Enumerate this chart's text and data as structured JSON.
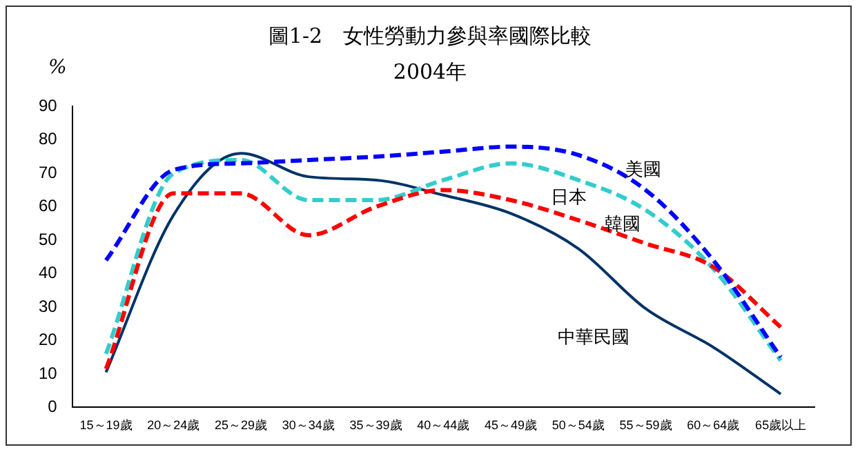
{
  "chart_data": {
    "type": "line",
    "title": "圖1-2　女性勞動力參與率國際比較",
    "subtitle": "2004年",
    "ylabel": "%",
    "categories": [
      "15～19歲",
      "20～24歲",
      "25～29歲",
      "30～34歲",
      "35～39歲",
      "40～44歲",
      "45～49歲",
      "50～54歲",
      "55～59歲",
      "60～64歲",
      "65歲以上"
    ],
    "series": [
      {
        "name": "美國",
        "color": "#0000ff",
        "line_style": "dashed",
        "values": [
          44,
          71,
          73,
          74,
          75,
          76.5,
          78,
          75.5,
          65,
          44,
          15
        ]
      },
      {
        "name": "日本",
        "color": "#ff0000",
        "line_style": "dashed",
        "values": [
          11.5,
          64,
          64,
          51.5,
          60,
          65,
          62,
          56,
          49,
          42,
          24
        ]
      },
      {
        "name": "韓國",
        "color": "#33cccc",
        "line_style": "dashed",
        "values": [
          16,
          70,
          74,
          62,
          62,
          68,
          73,
          68,
          59,
          41.5,
          14
        ]
      },
      {
        "name": "中華民國",
        "color": "#003366",
        "line_style": "solid",
        "values": [
          10.5,
          57.5,
          76,
          69,
          68,
          63.5,
          58,
          47.5,
          29.5,
          18,
          4
        ]
      }
    ],
    "ylim": [
      0,
      90
    ],
    "yticks": [
      0,
      10,
      20,
      30,
      40,
      50,
      60,
      70,
      80,
      90
    ],
    "grid": false,
    "legend": false,
    "marker": "none"
  }
}
